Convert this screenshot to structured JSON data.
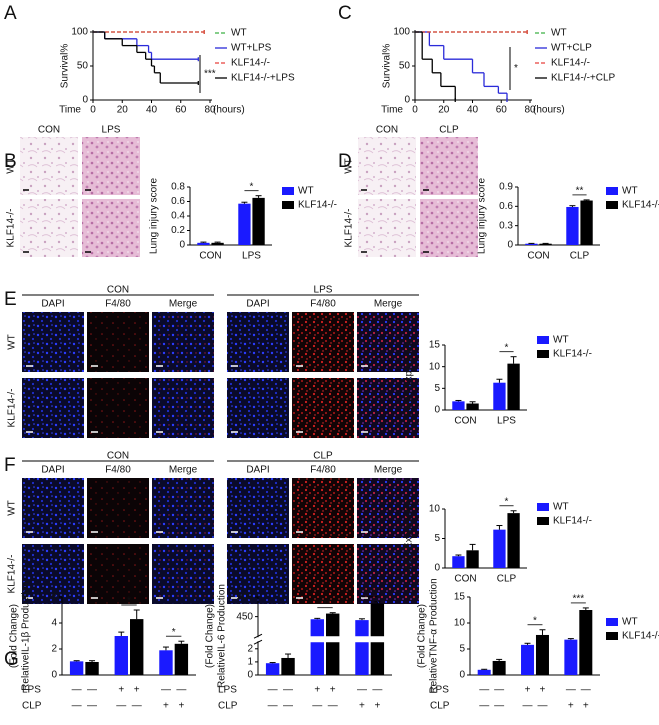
{
  "figure": {
    "panel_labels": [
      "A",
      "B",
      "C",
      "D",
      "E",
      "F",
      "G"
    ],
    "groups": {
      "con": "CON",
      "lps": "LPS",
      "clp": "CLP"
    },
    "genotypes": [
      "WT",
      "KLF14-/-"
    ],
    "stains": [
      "DAPI",
      "F4/80",
      "Merge"
    ],
    "treatments": [
      {
        "name": "LPS",
        "marks": [
          "—",
          "—",
          "+",
          "+",
          "—",
          "—"
        ]
      },
      {
        "name": "CLP",
        "marks": [
          "—",
          "—",
          "—",
          "—",
          "+",
          "+"
        ]
      }
    ]
  },
  "chart_data": [
    {
      "type": "survival",
      "y_label": "Survival%",
      "x_label": "Time",
      "x_unit": "(hours)",
      "xlim": [
        0,
        80
      ],
      "xticks": [
        0,
        20,
        40,
        60,
        80
      ],
      "ylim": [
        0,
        100
      ],
      "yticks": [
        0,
        50,
        100
      ],
      "annotation": "***",
      "series": [
        {
          "name": "WT",
          "color": "#3cb043",
          "dashed": true,
          "x": [
            0,
            76
          ],
          "values": [
            100,
            100
          ]
        },
        {
          "name": "WT+LPS",
          "color": "#2b2bd9",
          "dashed": false,
          "x": [
            0,
            8,
            30,
            38,
            40,
            72
          ],
          "values": [
            100,
            90,
            80,
            70,
            60,
            60
          ]
        },
        {
          "name": "KLF14-/-",
          "color": "#e8413c",
          "dashed": true,
          "x": [
            0,
            76
          ],
          "values": [
            100,
            100
          ]
        },
        {
          "name": "KLF14-/-+LPS",
          "color": "#000000",
          "dashed": false,
          "x": [
            0,
            8,
            20,
            30,
            36,
            40,
            42,
            46,
            72
          ],
          "values": [
            100,
            90,
            80,
            70,
            60,
            50,
            40,
            25,
            25
          ]
        }
      ]
    },
    {
      "type": "survival",
      "y_label": "Survival%",
      "x_label": "Time",
      "x_unit": "(hours)",
      "xlim": [
        0,
        80
      ],
      "xticks": [
        0,
        20,
        40,
        60,
        80
      ],
      "ylim": [
        0,
        100
      ],
      "yticks": [
        0,
        50,
        100
      ],
      "annotation": "*",
      "series": [
        {
          "name": "WT",
          "color": "#3cb043",
          "dashed": true,
          "x": [
            0,
            78
          ],
          "values": [
            100,
            100
          ]
        },
        {
          "name": "WT+CLP",
          "color": "#2b2bd9",
          "dashed": false,
          "x": [
            0,
            10,
            20,
            40,
            48,
            58,
            64
          ],
          "values": [
            100,
            80,
            60,
            40,
            20,
            10,
            0
          ]
        },
        {
          "name": "KLF14-/-",
          "color": "#e8413c",
          "dashed": true,
          "x": [
            0,
            78
          ],
          "values": [
            100,
            100
          ]
        },
        {
          "name": "KLF14-/-+CLP",
          "color": "#000000",
          "dashed": false,
          "x": [
            0,
            5,
            12,
            18,
            28
          ],
          "values": [
            100,
            60,
            40,
            20,
            0
          ]
        }
      ]
    },
    {
      "type": "bar",
      "y_label": [
        "Lung injury score"
      ],
      "categories": [
        "CON",
        "LPS"
      ],
      "ylim": [
        0,
        0.8
      ],
      "yticks": [
        0,
        0.2,
        0.4,
        0.6,
        0.8
      ],
      "legend": true,
      "x_table": false,
      "annotations": [
        null,
        "*"
      ],
      "series": [
        {
          "name": "WT",
          "color": "#1a1aff",
          "values": [
            0.03,
            0.57
          ],
          "errors": [
            0.01,
            0.02
          ]
        },
        {
          "name": "KLF14-/-",
          "color": "#000000",
          "values": [
            0.03,
            0.65
          ],
          "errors": [
            0.01,
            0.03
          ]
        }
      ]
    },
    {
      "type": "bar",
      "y_label": [
        "Lung injury score"
      ],
      "categories": [
        "CON",
        "CLP"
      ],
      "ylim": [
        0,
        0.9
      ],
      "yticks": [
        0,
        0.3,
        0.6,
        0.9
      ],
      "legend": true,
      "x_table": false,
      "annotations": [
        null,
        "**"
      ],
      "series": [
        {
          "name": "WT",
          "color": "#1a1aff",
          "values": [
            0.02,
            0.59
          ],
          "errors": [
            0.005,
            0.02
          ]
        },
        {
          "name": "KLF14-/-",
          "color": "#000000",
          "values": [
            0.02,
            0.69
          ],
          "errors": [
            0.005,
            0.01
          ]
        }
      ]
    },
    {
      "type": "bar",
      "y_label": [
        "F4/80 Expression"
      ],
      "categories": [
        "CON",
        "LPS"
      ],
      "ylim": [
        0,
        15
      ],
      "yticks": [
        0,
        5,
        10,
        15
      ],
      "legend": true,
      "x_table": false,
      "annotations": [
        null,
        "*"
      ],
      "series": [
        {
          "name": "WT",
          "color": "#1a1aff",
          "values": [
            2,
            6.3
          ],
          "errors": [
            0.2,
            0.8
          ]
        },
        {
          "name": "KLF14-/-",
          "color": "#000000",
          "values": [
            1.5,
            10.7
          ],
          "errors": [
            0.4,
            1.6
          ]
        }
      ]
    },
    {
      "type": "bar",
      "y_label": [
        "F4/80 Expression"
      ],
      "categories": [
        "CON",
        "CLP"
      ],
      "ylim": [
        0,
        10
      ],
      "yticks": [
        0,
        5,
        10
      ],
      "legend": true,
      "x_table": false,
      "annotations": [
        null,
        "*"
      ],
      "series": [
        {
          "name": "WT",
          "color": "#1a1aff",
          "values": [
            2,
            6.5
          ],
          "errors": [
            0.2,
            0.7
          ]
        },
        {
          "name": "KLF14-/-",
          "color": "#000000",
          "values": [
            3,
            9.3
          ],
          "errors": [
            1,
            0.4
          ]
        }
      ]
    },
    {
      "type": "bar",
      "y_label": [
        "RelativeIL-1β Production",
        "(Fold Change)"
      ],
      "ylim": [
        0,
        6
      ],
      "yticks": [
        0,
        2,
        4,
        6
      ],
      "legend": false,
      "x_table": true,
      "annotations": [
        null,
        "*",
        "*"
      ],
      "series": [
        {
          "name": "WT",
          "color": "#1a1aff",
          "values": [
            1.05,
            3,
            1.9
          ],
          "errors": [
            0.05,
            0.3,
            0.25
          ]
        },
        {
          "name": "KLF14-/-",
          "color": "#000000",
          "values": [
            1,
            4.3,
            2.4
          ],
          "errors": [
            0.1,
            0.7,
            0.2
          ]
        }
      ]
    },
    {
      "type": "bar",
      "y_label": [
        "RelativeIL-6 Production",
        "(Fold Change)"
      ],
      "ylim_lower": [
        0,
        2.5
      ],
      "ylim_upper": [
        0,
        900
      ],
      "yticks": [
        0,
        1,
        2,
        450,
        900
      ],
      "legend": false,
      "x_table": true,
      "annotations": [
        null,
        "***",
        "***"
      ],
      "series": [
        {
          "name": "WT",
          "color": "#1a1aff",
          "values": [
            0.9,
            390,
            370
          ],
          "errors": [
            0.05,
            20,
            30
          ]
        },
        {
          "name": "KLF14-/-",
          "color": "#000000",
          "values": [
            1.3,
            520,
            750
          ],
          "errors": [
            0.3,
            20,
            40
          ]
        }
      ]
    },
    {
      "type": "bar",
      "y_label": [
        "RelativeTNF-α Production",
        "(Fold Change)"
      ],
      "ylim": [
        0,
        15
      ],
      "yticks": [
        0,
        5,
        10,
        15
      ],
      "legend": true,
      "x_table": true,
      "annotations": [
        null,
        "*",
        "***"
      ],
      "series": [
        {
          "name": "WT",
          "color": "#1a1aff",
          "values": [
            1,
            5.8,
            6.8
          ],
          "errors": [
            0.1,
            0.3,
            0.2
          ]
        },
        {
          "name": "KLF14-/-",
          "color": "#000000",
          "values": [
            2.7,
            7.7,
            12.5
          ],
          "errors": [
            0.3,
            1,
            0.4
          ]
        }
      ]
    }
  ]
}
